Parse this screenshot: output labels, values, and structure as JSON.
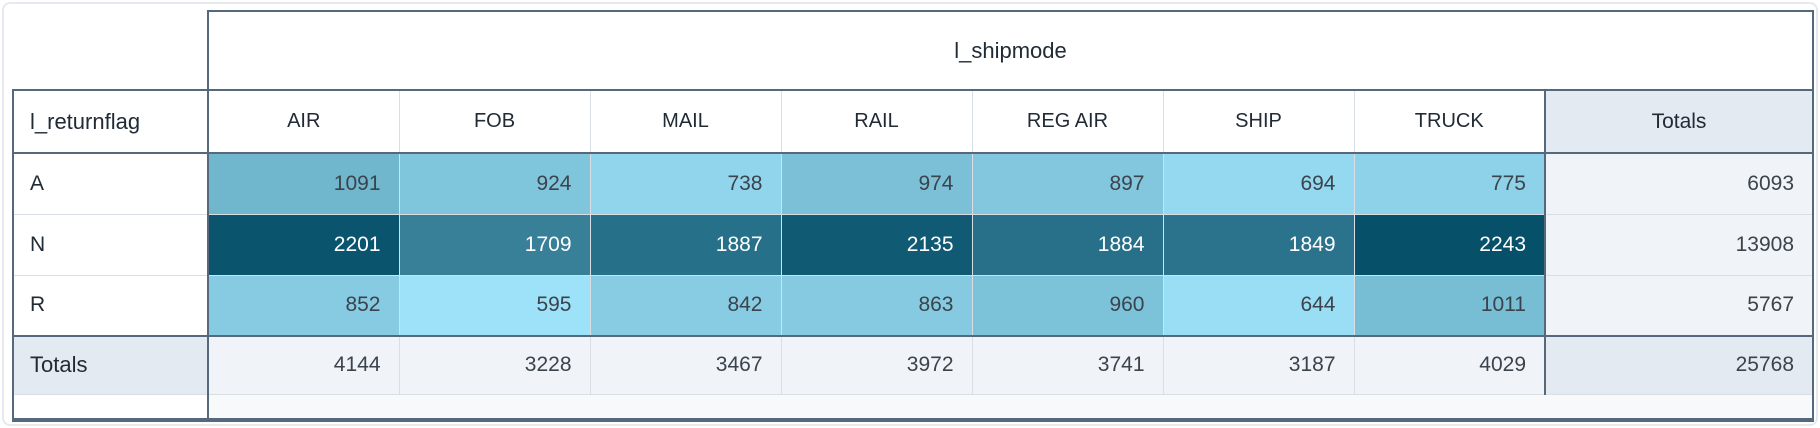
{
  "chart_data": {
    "type": "heatmap",
    "column_dimension": "l_shipmode",
    "row_dimension": "l_returnflag",
    "totals_label": "Totals",
    "columns": [
      "AIR",
      "FOB",
      "MAIL",
      "RAIL",
      "REG AIR",
      "SHIP",
      "TRUCK"
    ],
    "rows": [
      {
        "label": "A",
        "values": [
          1091,
          924,
          738,
          974,
          897,
          694,
          775
        ],
        "total": 6093
      },
      {
        "label": "N",
        "values": [
          2201,
          1709,
          1887,
          2135,
          1884,
          1849,
          2243
        ],
        "total": 13908
      },
      {
        "label": "R",
        "values": [
          852,
          595,
          842,
          863,
          960,
          644,
          1011
        ],
        "total": 5767
      }
    ],
    "column_totals": [
      4144,
      3228,
      3467,
      3972,
      3741,
      3187,
      4029
    ],
    "grand_total": 25768,
    "value_range": [
      595,
      2243
    ],
    "colormap": [
      "#9de2f8",
      "#07506a"
    ]
  },
  "colors": {
    "background": "#ffffff",
    "card_border": "#e6e9ed",
    "border_strong": "#56687b",
    "border_light": "#d9dee4",
    "header_text": "#212b36",
    "value_text": "#3b434c",
    "value_text_on_dark": "#ffffff",
    "totals_header_bg": "#e3eaf2",
    "totals_cell_bg": "#f0f3f7",
    "footer_bg": "#f8f9fa"
  }
}
